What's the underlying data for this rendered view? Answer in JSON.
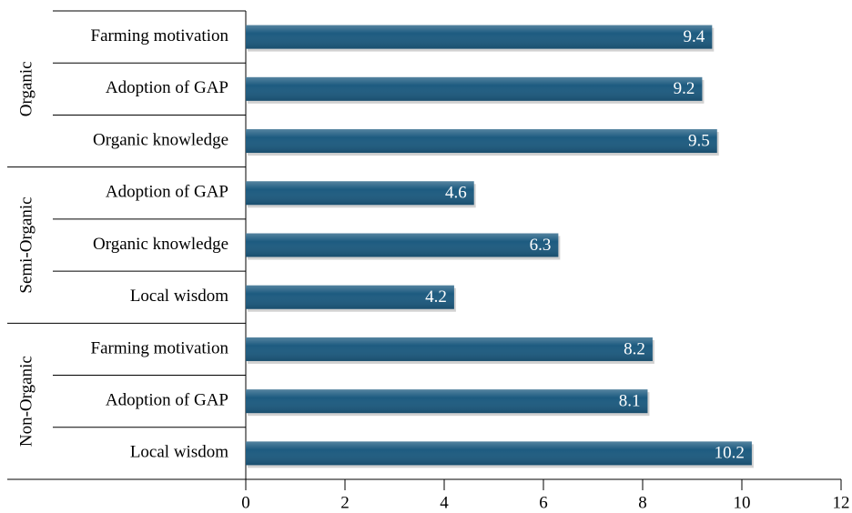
{
  "chart_data": {
    "type": "bar",
    "orientation": "horizontal",
    "color": "#1d5b80",
    "groups": [
      {
        "name": "Organic",
        "categories": [
          "Farming motivation",
          "Adoption of GAP",
          "Organic knowledge"
        ],
        "values": [
          9.4,
          9.2,
          9.5
        ]
      },
      {
        "name": "Semi-Organic",
        "categories": [
          "Adoption of GAP",
          "Organic knowledge",
          "Local wisdom"
        ],
        "values": [
          4.6,
          6.3,
          4.2
        ]
      },
      {
        "name": "Non-Organic",
        "categories": [
          "Farming motivation",
          "Adoption of GAP",
          "Local wisdom"
        ],
        "values": [
          8.2,
          8.1,
          10.2
        ]
      }
    ],
    "xlim": [
      0,
      12
    ],
    "xticks": [
      0,
      2,
      4,
      6,
      8,
      10,
      12
    ]
  }
}
